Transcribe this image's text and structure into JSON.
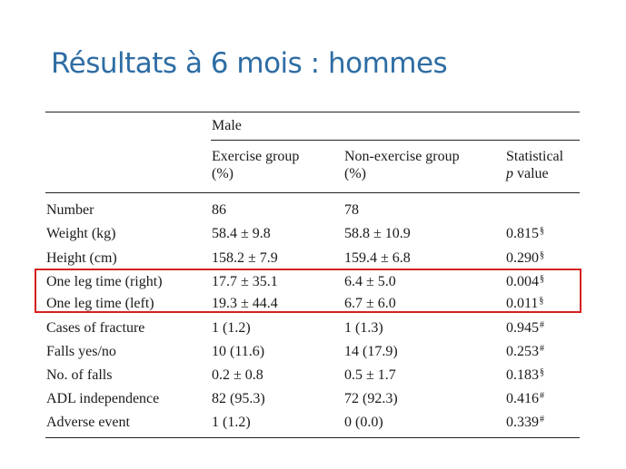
{
  "slide": {
    "title": "Résultats à 6 mois : hommes"
  },
  "table": {
    "group_header": "Male",
    "columns": [
      {
        "line1": "Exercise group",
        "line2": "(%)"
      },
      {
        "line1": "Non-exercise group",
        "line2": "(%)"
      },
      {
        "line1": "Statistical",
        "line2_italic": "p",
        "line2_rest": " value"
      }
    ],
    "rows": [
      {
        "label": "Number",
        "ex": "86",
        "nonex": "78",
        "p": "",
        "sym": ""
      },
      {
        "label": "Weight (kg)",
        "ex": "58.4 ± 9.8",
        "nonex": "58.8 ± 10.9",
        "p": "0.815",
        "sym": "§"
      },
      {
        "label": "Height (cm)",
        "ex": "158.2 ± 7.9",
        "nonex": "159.4 ± 6.8",
        "p": "0.290",
        "sym": "§"
      },
      {
        "label": "One leg time (right)",
        "ex": "17.7 ± 35.1",
        "nonex": "6.4 ± 5.0",
        "p": "0.004",
        "sym": "§"
      },
      {
        "label": "One leg time (left)",
        "ex": "19.3 ± 44.4",
        "nonex": "6.7 ± 6.0",
        "p": "0.011",
        "sym": "§"
      },
      {
        "label": "Cases of fracture",
        "ex": "1 (1.2)",
        "nonex": "1 (1.3)",
        "p": "0.945",
        "sym": "#"
      },
      {
        "label": "Falls yes/no",
        "ex": "10 (11.6)",
        "nonex": "14 (17.9)",
        "p": "0.253",
        "sym": "#"
      },
      {
        "label": "No. of falls",
        "ex": "0.2 ± 0.8",
        "nonex": "0.5 ± 1.7",
        "p": "0.183",
        "sym": "§"
      },
      {
        "label": "ADL independence",
        "ex": "82 (95.3)",
        "nonex": "72 (92.3)",
        "p": "0.416",
        "sym": "#"
      },
      {
        "label": "Adverse event",
        "ex": "1 (1.2)",
        "nonex": "0 (0.0)",
        "p": "0.339",
        "sym": "#"
      }
    ],
    "highlight": {
      "rows": [
        "One leg time (right)",
        "One leg time (left)"
      ],
      "color": "#d41f1f"
    }
  },
  "colors": {
    "title": "#2E6DA4",
    "text": "#1a1a1a",
    "highlight": "#d41f1f"
  }
}
